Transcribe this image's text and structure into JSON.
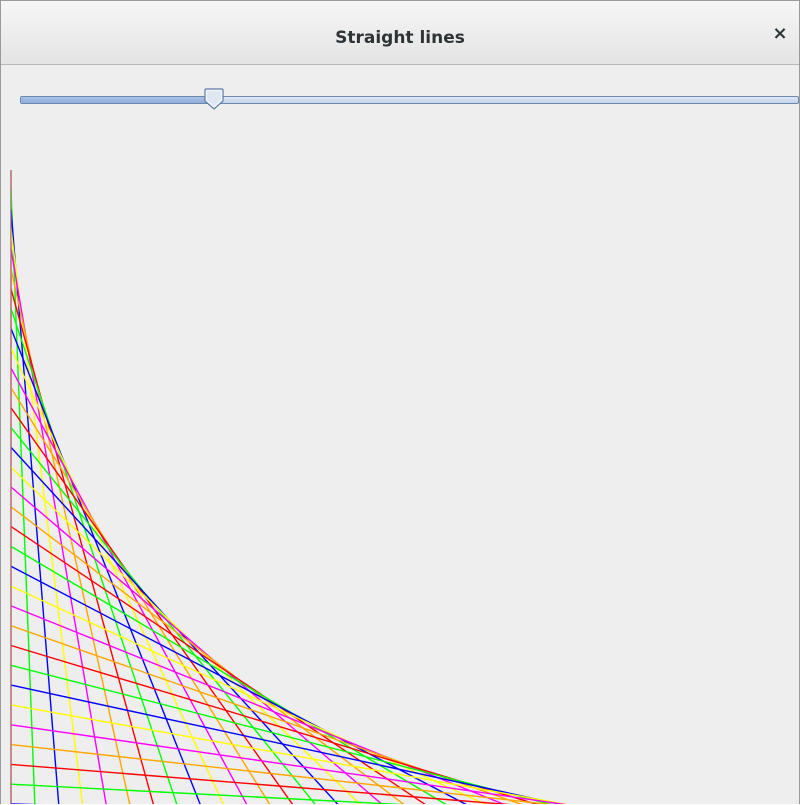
{
  "window": {
    "title": "Straight lines",
    "close_symbol": "×"
  },
  "slider": {
    "value_fraction": 0.25
  },
  "drawing": {
    "colors": [
      "#ff0000",
      "#00ff00",
      "#0000ff",
      "#ffff00",
      "#ff00ff",
      "#ffa500"
    ]
  }
}
